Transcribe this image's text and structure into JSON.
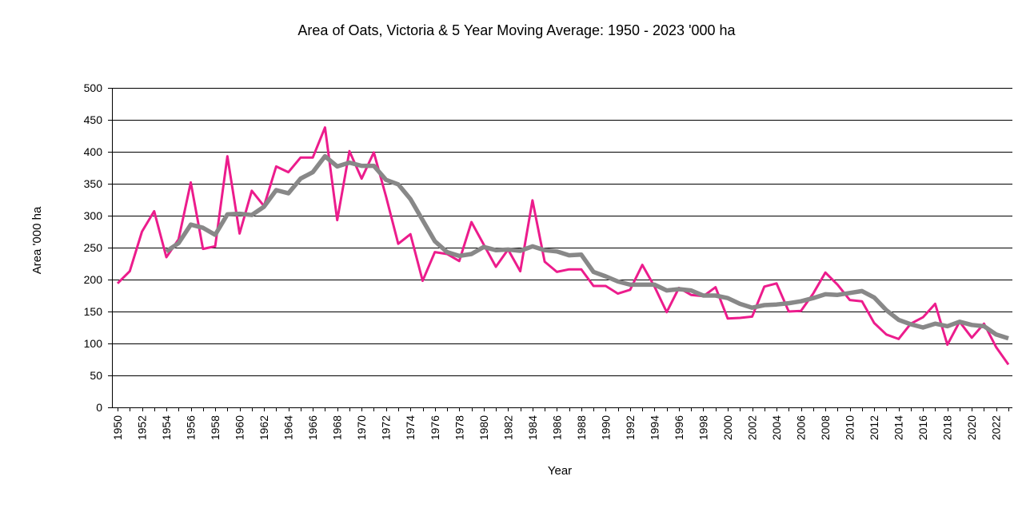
{
  "chart_data": {
    "type": "line",
    "title": "Area of Oats, Victoria & 5 Year Moving Average: 1950 - 2023 '000 ha",
    "xlabel": "Year",
    "ylabel": "Area '000 ha",
    "ylim": [
      0,
      500
    ],
    "yticks": [
      0,
      50,
      100,
      150,
      200,
      250,
      300,
      350,
      400,
      450,
      500
    ],
    "grid": true,
    "x": [
      1950,
      1951,
      1952,
      1953,
      1954,
      1955,
      1956,
      1957,
      1958,
      1959,
      1960,
      1961,
      1962,
      1963,
      1964,
      1965,
      1966,
      1967,
      1968,
      1969,
      1970,
      1971,
      1972,
      1973,
      1974,
      1975,
      1976,
      1977,
      1978,
      1979,
      1980,
      1981,
      1982,
      1983,
      1984,
      1985,
      1986,
      1987,
      1988,
      1989,
      1990,
      1991,
      1992,
      1993,
      1994,
      1995,
      1996,
      1997,
      1998,
      1999,
      2000,
      2001,
      2002,
      2003,
      2004,
      2005,
      2006,
      2007,
      2008,
      2009,
      2010,
      2011,
      2012,
      2013,
      2014,
      2015,
      2016,
      2017,
      2018,
      2019,
      2020,
      2021,
      2022,
      2023
    ],
    "xtick_labels": [
      "1950",
      "1952",
      "1954",
      "1956",
      "1958",
      "1960",
      "1962",
      "1964",
      "1966",
      "1968",
      "1970",
      "1972",
      "1974",
      "1976",
      "1978",
      "1980",
      "1982",
      "1984",
      "1986",
      "1988",
      "1990",
      "1992",
      "1994",
      "1996",
      "1998",
      "2000",
      "2002",
      "2004",
      "2006",
      "2008",
      "2010",
      "2012",
      "2014",
      "2016",
      "2018",
      "2020",
      "2022"
    ],
    "series": [
      {
        "name": "Area of Oats",
        "color": "#ec1c8c",
        "values": [
          194,
          213,
          275,
          307,
          235,
          263,
          352,
          248,
          252,
          393,
          272,
          339,
          315,
          377,
          368,
          391,
          391,
          438,
          293,
          401,
          358,
          399,
          330,
          256,
          271,
          198,
          243,
          240,
          229,
          290,
          255,
          220,
          247,
          213,
          324,
          228,
          212,
          216,
          216,
          190,
          190,
          178,
          184,
          223,
          189,
          149,
          187,
          176,
          174,
          188,
          139,
          140,
          142,
          189,
          194,
          150,
          151,
          178,
          211,
          192,
          168,
          166,
          132,
          114,
          107,
          131,
          141,
          162,
          98,
          134,
          109,
          131,
          94,
          67
        ]
      },
      {
        "name": "5 Year Moving Average",
        "color": "#888888",
        "values": [
          null,
          null,
          null,
          null,
          244,
          257,
          286,
          281,
          270,
          302,
          303,
          301,
          314,
          340,
          335,
          358,
          368,
          393,
          377,
          383,
          378,
          378,
          356,
          349,
          326,
          293,
          260,
          243,
          237,
          240,
          251,
          246,
          247,
          245,
          252,
          246,
          244,
          238,
          239,
          212,
          205,
          197,
          192,
          192,
          192,
          183,
          185,
          183,
          175,
          175,
          171,
          162,
          156,
          160,
          161,
          163,
          166,
          171,
          177,
          176,
          179,
          182,
          172,
          152,
          137,
          130,
          125,
          131,
          127,
          134,
          129,
          127,
          114,
          108
        ]
      }
    ]
  }
}
